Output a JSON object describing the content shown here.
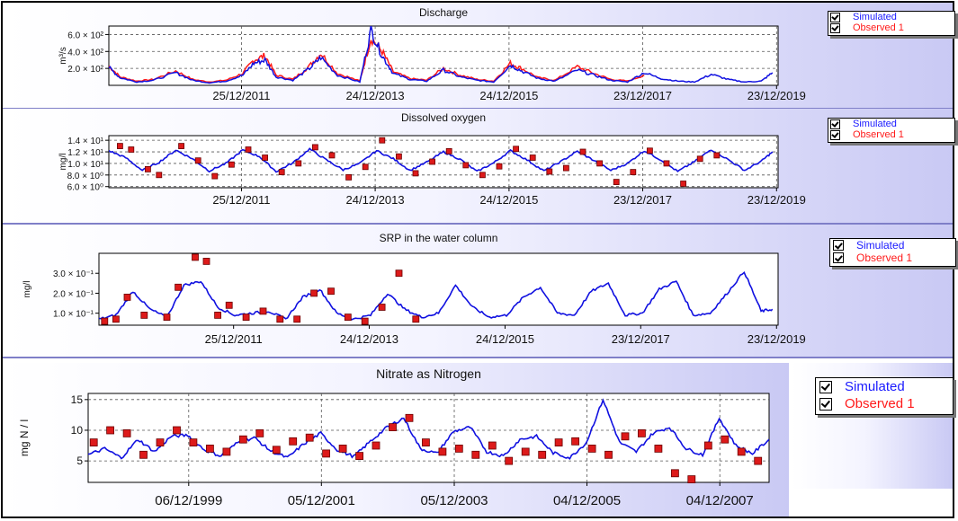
{
  "colors": {
    "simulated": "#1010e0",
    "observed_fill": "#dd1a1a",
    "observed_line": "#ff1a1a",
    "grid": "#555555"
  },
  "chart_data": [
    {
      "type": "line",
      "title": "Discharge",
      "ylabel": "m³/s",
      "yticks": [
        "6.0 × 10²",
        "4.0 × 10²",
        "2.0 × 10²"
      ],
      "ytick_values": [
        600,
        400,
        200
      ],
      "ylim": [
        0,
        700
      ],
      "xlim": [
        "2010-01-01",
        "2020-01-01"
      ],
      "xticks": [
        "25/12/2011",
        "24/12/2013",
        "24/12/2015",
        "23/12/2017",
        "23/12/2019"
      ],
      "grid": true,
      "legend": [
        "Simulated",
        "Observed 1"
      ],
      "legend_position": "right",
      "series": [
        {
          "name": "Simulated",
          "style": "line",
          "x": [
            "2010-01",
            "2010-03",
            "2010-06",
            "2010-09",
            "2011-01",
            "2011-04",
            "2011-07",
            "2011-10",
            "2012-01",
            "2012-03",
            "2012-05",
            "2012-07",
            "2012-10",
            "2013-01",
            "2013-03",
            "2013-06",
            "2013-10",
            "2013-12",
            "2014-02",
            "2014-04",
            "2014-07",
            "2014-10",
            "2015-01",
            "2015-04",
            "2015-07",
            "2015-10",
            "2016-01",
            "2016-03",
            "2016-06",
            "2016-09",
            "2017-01",
            "2017-04",
            "2017-07",
            "2017-10",
            "2018-01",
            "2018-04",
            "2018-07",
            "2018-10",
            "2019-01",
            "2019-04",
            "2019-07",
            "2019-10",
            "2019-12"
          ],
          "values": [
            210,
            90,
            40,
            60,
            150,
            60,
            30,
            50,
            120,
            260,
            300,
            100,
            60,
            200,
            330,
            120,
            40,
            650,
            350,
            140,
            70,
            50,
            180,
            100,
            60,
            40,
            240,
            170,
            80,
            50,
            180,
            120,
            60,
            40,
            150,
            80,
            50,
            40,
            130,
            70,
            40,
            50,
            150
          ]
        },
        {
          "name": "Observed 1",
          "style": "line",
          "x": [
            "2010-01",
            "2010-03",
            "2010-06",
            "2010-09",
            "2011-01",
            "2011-04",
            "2011-07",
            "2011-10",
            "2012-01",
            "2012-03",
            "2012-05",
            "2012-07",
            "2012-10",
            "2013-01",
            "2013-03",
            "2013-06",
            "2013-10",
            "2013-12",
            "2014-02",
            "2014-04",
            "2014-07",
            "2014-10",
            "2015-01",
            "2015-04",
            "2015-07",
            "2015-10",
            "2016-01",
            "2016-03",
            "2016-06",
            "2016-09",
            "2017-01",
            "2017-04",
            "2017-07",
            "2017-10",
            "2018-01"
          ],
          "values": [
            230,
            100,
            50,
            70,
            170,
            70,
            40,
            60,
            140,
            300,
            350,
            120,
            70,
            230,
            380,
            140,
            50,
            560,
            400,
            160,
            80,
            60,
            200,
            120,
            70,
            50,
            260,
            200,
            90,
            60,
            220,
            140,
            70,
            50,
            120
          ]
        }
      ]
    },
    {
      "type": "line",
      "title": "Dissolved oxygen",
      "ylabel": "mg/l",
      "yticks": [
        "1.4 × 10¹",
        "1.2 × 10¹",
        "1.0 × 10¹",
        "8.0 × 10⁰",
        "6.0 × 10⁰"
      ],
      "ytick_values": [
        14,
        12,
        10,
        8,
        6
      ],
      "ylim": [
        5.8,
        14.8
      ],
      "xlim": [
        "2010-01-01",
        "2020-01-01"
      ],
      "xticks": [
        "25/12/2011",
        "24/12/2013",
        "24/12/2015",
        "23/12/2017",
        "23/12/2019"
      ],
      "grid": true,
      "legend": [
        "Simulated",
        "Observed 1"
      ],
      "legend_position": "right",
      "series": [
        {
          "name": "Simulated",
          "style": "line",
          "x": [
            "2010-01",
            "2010-04",
            "2010-07",
            "2010-10",
            "2011-01",
            "2011-04",
            "2011-07",
            "2011-10",
            "2012-01",
            "2012-04",
            "2012-07",
            "2012-10",
            "2013-01",
            "2013-04",
            "2013-07",
            "2013-10",
            "2014-01",
            "2014-04",
            "2014-07",
            "2014-10",
            "2015-01",
            "2015-04",
            "2015-07",
            "2015-10",
            "2016-01",
            "2016-04",
            "2016-07",
            "2016-10",
            "2017-01",
            "2017-04",
            "2017-07",
            "2017-10",
            "2018-01",
            "2018-04",
            "2018-07",
            "2018-10",
            "2019-01",
            "2019-04",
            "2019-07",
            "2019-10",
            "2019-12"
          ],
          "values": [
            12.2,
            11.0,
            8.8,
            10.2,
            12.3,
            10.8,
            8.7,
            10.0,
            12.3,
            11.2,
            8.6,
            10.1,
            12.5,
            10.6,
            8.9,
            10.0,
            12.2,
            10.8,
            8.8,
            10.2,
            12.0,
            10.7,
            8.6,
            10.1,
            12.2,
            10.6,
            8.7,
            10.3,
            12.1,
            10.5,
            8.8,
            10.0,
            12.2,
            10.6,
            8.6,
            10.3,
            12.4,
            10.7,
            8.8,
            10.4,
            12.0
          ]
        },
        {
          "name": "Observed 1",
          "style": "markers",
          "x": [
            "2010-03",
            "2010-05",
            "2010-08",
            "2010-10",
            "2011-02",
            "2011-05",
            "2011-08",
            "2011-11",
            "2012-02",
            "2012-05",
            "2012-08",
            "2012-11",
            "2013-02",
            "2013-05",
            "2013-08",
            "2013-11",
            "2014-02",
            "2014-05",
            "2014-08",
            "2014-11",
            "2015-02",
            "2015-05",
            "2015-08",
            "2015-11",
            "2016-02",
            "2016-05",
            "2016-08",
            "2016-11",
            "2017-02",
            "2017-05",
            "2017-08",
            "2017-11",
            "2018-02",
            "2018-05",
            "2018-08",
            "2018-11",
            "2019-02"
          ],
          "values": [
            13.0,
            12.4,
            9.0,
            8.0,
            13.0,
            10.5,
            7.8,
            9.8,
            12.4,
            11.0,
            8.5,
            10.0,
            12.8,
            11.4,
            7.6,
            9.4,
            14.0,
            11.2,
            8.3,
            10.3,
            12.1,
            9.7,
            8.0,
            9.5,
            12.5,
            11.0,
            8.6,
            9.2,
            12.0,
            10.0,
            6.8,
            8.5,
            12.2,
            10.0,
            6.5,
            10.8,
            11.4
          ]
        }
      ]
    },
    {
      "type": "line",
      "title": "SRP in the water column",
      "ylabel": "mg/l",
      "yticks": [
        "3.0 × 10⁻¹",
        "2.0 × 10⁻¹",
        "1.0 × 10⁻¹"
      ],
      "ytick_values": [
        0.3,
        0.2,
        0.1
      ],
      "ylim": [
        0.04,
        0.4
      ],
      "xlim": [
        "2010-01-01",
        "2020-01-01"
      ],
      "xticks": [
        "25/12/2011",
        "24/12/2013",
        "24/12/2015",
        "23/12/2017",
        "23/12/2019"
      ],
      "grid": false,
      "legend": [
        "Simulated",
        "Observed 1"
      ],
      "legend_position": "right",
      "series": [
        {
          "name": "Simulated",
          "style": "line",
          "x": [
            "2010-01",
            "2010-04",
            "2010-07",
            "2010-10",
            "2011-01",
            "2011-04",
            "2011-07",
            "2011-10",
            "2012-01",
            "2012-04",
            "2012-07",
            "2012-10",
            "2013-01",
            "2013-04",
            "2013-07",
            "2013-10",
            "2014-01",
            "2014-04",
            "2014-07",
            "2014-10",
            "2015-01",
            "2015-04",
            "2015-07",
            "2015-10",
            "2016-01",
            "2016-04",
            "2016-07",
            "2016-10",
            "2017-01",
            "2017-04",
            "2017-07",
            "2017-10",
            "2018-01",
            "2018-04",
            "2018-07",
            "2018-10",
            "2019-01",
            "2019-04",
            "2019-07",
            "2019-10",
            "2019-12"
          ],
          "values": [
            0.07,
            0.09,
            0.21,
            0.12,
            0.08,
            0.24,
            0.26,
            0.13,
            0.09,
            0.1,
            0.11,
            0.07,
            0.18,
            0.22,
            0.1,
            0.07,
            0.09,
            0.2,
            0.12,
            0.08,
            0.1,
            0.24,
            0.13,
            0.08,
            0.09,
            0.18,
            0.23,
            0.1,
            0.09,
            0.21,
            0.25,
            0.09,
            0.1,
            0.22,
            0.26,
            0.09,
            0.1,
            0.2,
            0.31,
            0.11,
            0.12
          ]
        },
        {
          "name": "Observed 1",
          "style": "markers",
          "x": [
            "2010-02",
            "2010-04",
            "2010-06",
            "2010-09",
            "2011-01",
            "2011-03",
            "2011-06",
            "2011-08",
            "2011-10",
            "2011-12",
            "2012-03",
            "2012-06",
            "2012-09",
            "2012-12",
            "2013-03",
            "2013-06",
            "2013-09",
            "2013-12",
            "2014-03",
            "2014-06",
            "2014-09"
          ],
          "values": [
            0.06,
            0.07,
            0.18,
            0.09,
            0.08,
            0.23,
            0.38,
            0.36,
            0.09,
            0.14,
            0.08,
            0.11,
            0.07,
            0.07,
            0.2,
            0.21,
            0.08,
            0.06,
            0.13,
            0.3,
            0.07
          ]
        }
      ]
    },
    {
      "type": "line",
      "title": "Nitrate as Nitrogen",
      "ylabel": "mg N / l",
      "yticks": [
        "15",
        "10",
        "5"
      ],
      "ytick_values": [
        15,
        10,
        5
      ],
      "ylim": [
        1.5,
        16
      ],
      "xlim": [
        "1998-06-01",
        "2008-09-01"
      ],
      "xticks": [
        "06/12/1999",
        "05/12/2001",
        "05/12/2003",
        "04/12/2005",
        "04/12/2007"
      ],
      "grid": true,
      "legend": [
        "Simulated",
        "Observed 1"
      ],
      "legend_position": "right",
      "series": [
        {
          "name": "Simulated",
          "style": "line",
          "x": [
            "1998-06",
            "1998-09",
            "1998-12",
            "1999-03",
            "1999-06",
            "1999-09",
            "1999-12",
            "2000-03",
            "2000-06",
            "2000-09",
            "2000-12",
            "2001-03",
            "2001-06",
            "2001-09",
            "2001-12",
            "2002-03",
            "2002-06",
            "2002-09",
            "2002-12",
            "2003-03",
            "2003-06",
            "2003-09",
            "2003-12",
            "2004-03",
            "2004-06",
            "2004-09",
            "2004-12",
            "2005-03",
            "2005-06",
            "2005-09",
            "2005-12",
            "2006-03",
            "2006-06",
            "2006-09",
            "2006-12",
            "2007-03",
            "2007-06",
            "2007-09",
            "2007-12",
            "2008-03",
            "2008-06",
            "2008-09"
          ],
          "values": [
            6.0,
            7.0,
            5.5,
            8.5,
            6.5,
            9.0,
            9.2,
            6.8,
            5.8,
            8.0,
            8.8,
            6.6,
            5.5,
            7.8,
            9.5,
            6.8,
            5.7,
            8.2,
            10.5,
            12.0,
            7.0,
            6.2,
            9.8,
            10.5,
            6.5,
            5.8,
            8.5,
            9.0,
            6.3,
            5.5,
            8.0,
            15.0,
            8.0,
            6.5,
            9.5,
            10.5,
            7.0,
            6.0,
            12.0,
            7.5,
            6.2,
            8.5
          ]
        },
        {
          "name": "Observed 1",
          "style": "markers",
          "x": [
            "1998-07",
            "1998-10",
            "1999-01",
            "1999-04",
            "1999-07",
            "1999-10",
            "2000-01",
            "2000-04",
            "2000-07",
            "2000-10",
            "2001-01",
            "2001-04",
            "2001-07",
            "2001-10",
            "2002-01",
            "2002-04",
            "2002-07",
            "2002-10",
            "2003-01",
            "2003-04",
            "2003-07",
            "2003-10",
            "2004-01",
            "2004-04",
            "2004-07",
            "2004-10",
            "2005-01",
            "2005-04",
            "2005-07",
            "2005-10",
            "2006-01",
            "2006-04",
            "2006-07",
            "2006-10",
            "2007-01",
            "2007-04",
            "2007-07",
            "2007-10",
            "2008-01",
            "2008-04",
            "2008-07"
          ],
          "values": [
            8.0,
            10.0,
            9.5,
            6.0,
            8.0,
            10.0,
            8.0,
            7.0,
            6.5,
            8.5,
            9.5,
            6.8,
            8.2,
            8.8,
            6.2,
            7.0,
            5.8,
            7.5,
            10.5,
            12.0,
            8.0,
            6.5,
            7.0,
            6.0,
            7.5,
            5.0,
            6.5,
            6.0,
            8.0,
            8.2,
            7.0,
            6.0,
            9.0,
            9.5,
            7.0,
            3.0,
            2.0,
            7.5,
            8.5,
            6.5,
            5.0
          ]
        }
      ]
    }
  ]
}
